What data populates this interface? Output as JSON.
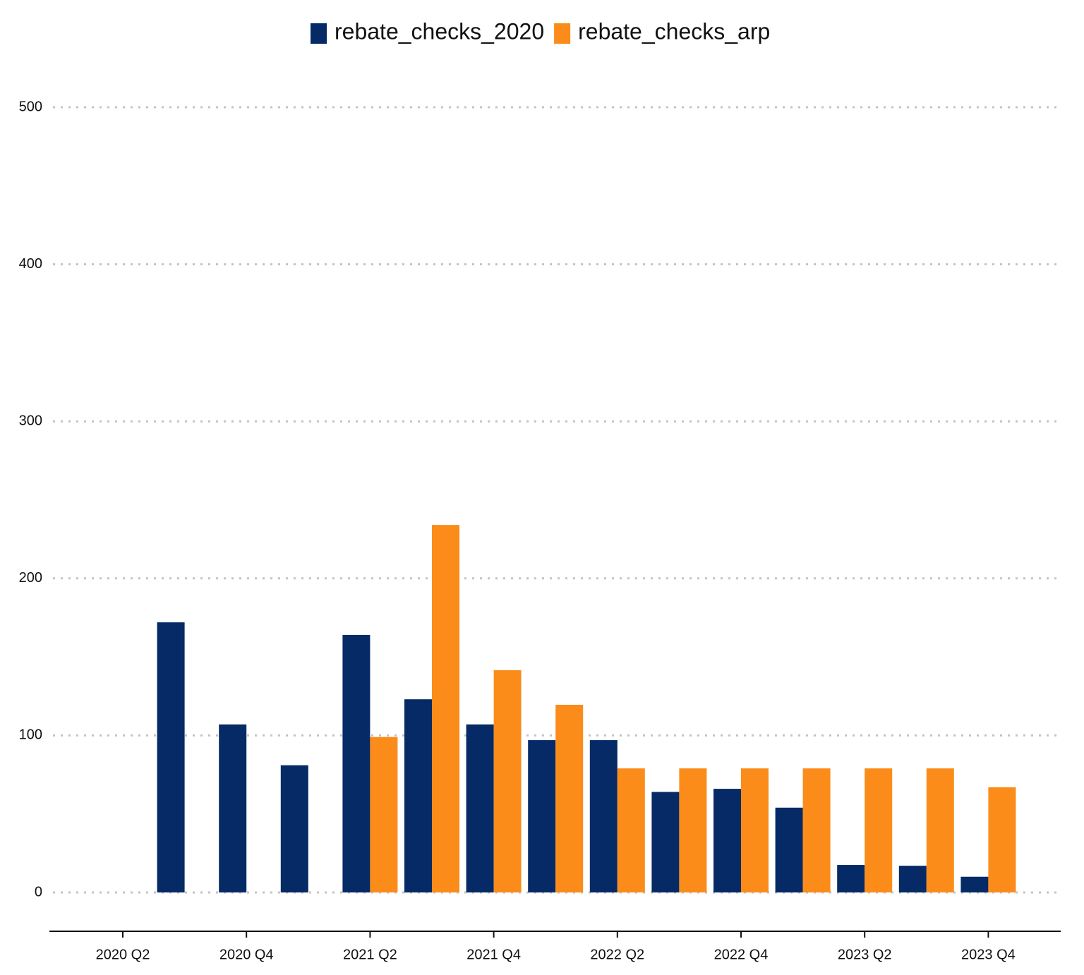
{
  "chart_data": {
    "type": "bar",
    "categories": [
      "2020 Q2",
      null,
      "2020 Q4",
      null,
      "2021 Q2",
      null,
      "2021 Q4",
      null,
      "2022 Q2",
      null,
      "2022 Q4",
      null,
      "2023 Q2",
      null,
      "2023 Q4"
    ],
    "series": [
      {
        "name": "rebate_checks_2020",
        "color": "#052a65",
        "values": [
          null,
          172,
          107,
          81,
          164,
          123,
          107,
          97,
          97,
          64,
          66,
          54,
          17.5,
          17,
          10
        ]
      },
      {
        "name": "rebate_checks_arp",
        "color": "#fb8c1a",
        "values": [
          null,
          null,
          null,
          null,
          99,
          234,
          141.5,
          119.5,
          79,
          79,
          79,
          79,
          79,
          79,
          67
        ]
      }
    ],
    "ylim": [
      0,
      500
    ],
    "yticks": [
      0,
      100,
      200,
      300,
      400,
      500
    ],
    "grid": true,
    "legend": "top"
  }
}
